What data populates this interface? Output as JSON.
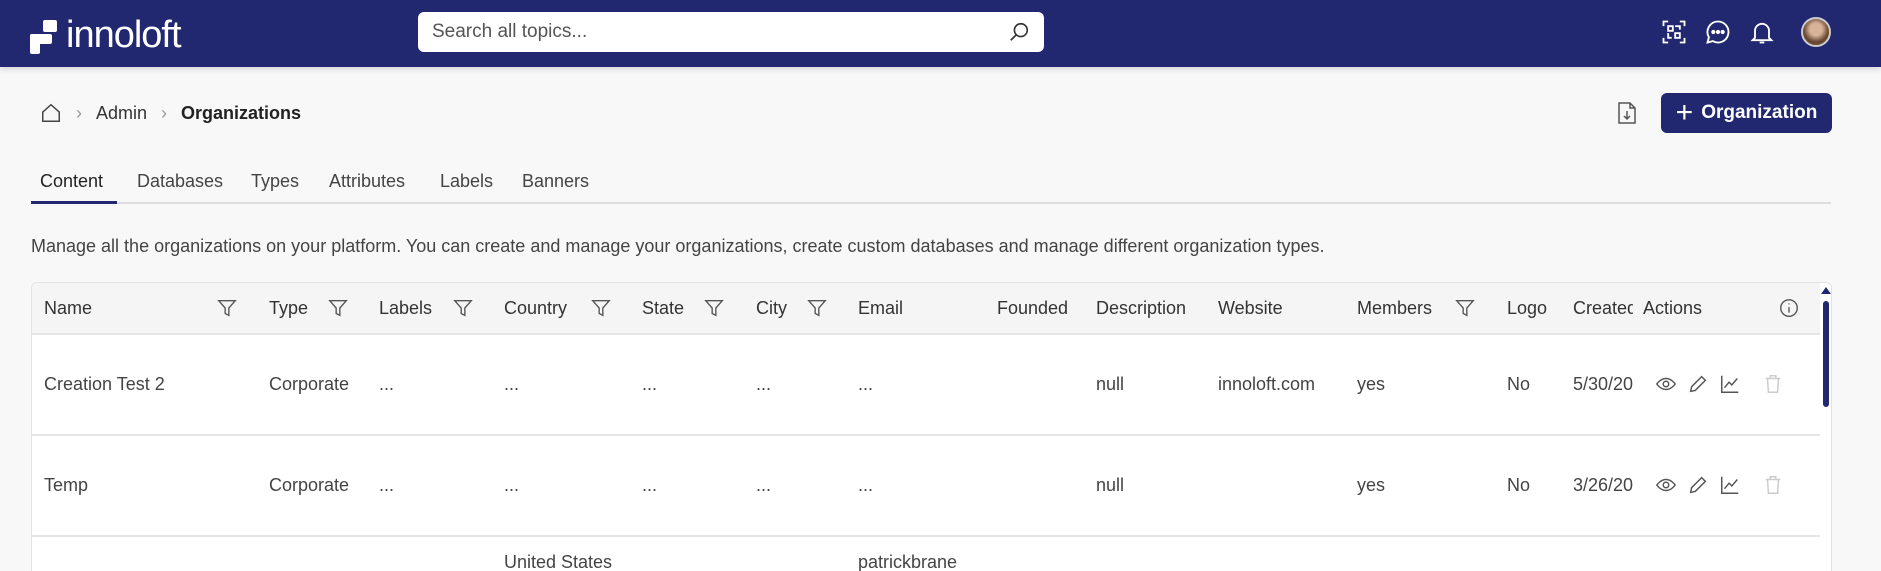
{
  "header": {
    "logo": "innoloft",
    "search_placeholder": "Search all topics..."
  },
  "breadcrumb": {
    "items": [
      "Admin",
      "Organizations"
    ]
  },
  "actions": {
    "add_label": "Organization"
  },
  "tabs": [
    "Content",
    "Databases",
    "Types",
    "Attributes",
    "Labels",
    "Banners"
  ],
  "active_tab": "Content",
  "description": "Manage all the organizations on your platform. You can create and manage your organizations, create custom databases and manage different organization types.",
  "table": {
    "columns": [
      "Name",
      "Type",
      "Labels",
      "Country",
      "State",
      "City",
      "Email",
      "Founded",
      "Description",
      "Website",
      "Members",
      "Logo",
      "Created",
      "Actions"
    ],
    "rows": [
      {
        "name": "Creation Test 2",
        "type": "Corporate",
        "labels": "...",
        "country": "...",
        "state": "...",
        "city": "...",
        "email": "...",
        "founded": "",
        "description": "null",
        "website": "innoloft.com",
        "members": "yes",
        "logo": "No",
        "created": "5/30/20"
      },
      {
        "name": "Temp",
        "type": "Corporate",
        "labels": "...",
        "country": "...",
        "state": "...",
        "city": "...",
        "email": "...",
        "founded": "",
        "description": "null",
        "website": "",
        "members": "yes",
        "logo": "No",
        "created": "3/26/20"
      },
      {
        "name": "",
        "type": "",
        "labels": "",
        "country": "United States",
        "state": "",
        "city": "",
        "email": "patrickbrane",
        "founded": "",
        "description": "",
        "website": "",
        "members": "",
        "logo": "",
        "created": ""
      }
    ]
  },
  "colors": {
    "brand": "#212870"
  }
}
